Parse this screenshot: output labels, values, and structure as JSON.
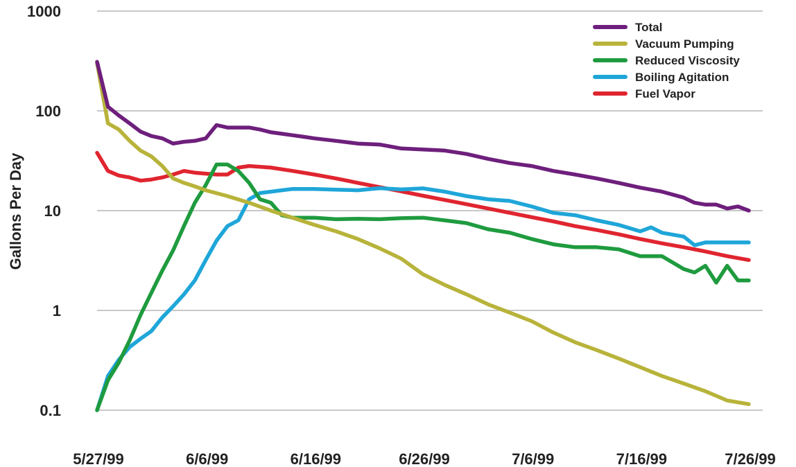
{
  "chart_data": {
    "type": "line",
    "title": "",
    "xlabel": "",
    "ylabel": "Gallons Per Day",
    "y_scale": "log",
    "ylim": [
      0.1,
      1000
    ],
    "y_ticks": [
      {
        "value": 0.1,
        "label": "0.1"
      },
      {
        "value": 1,
        "label": "1"
      },
      {
        "value": 10,
        "label": "10"
      },
      {
        "value": 100,
        "label": "100"
      },
      {
        "value": 1000,
        "label": "1000"
      }
    ],
    "xlim": [
      "1999-05-27",
      "1999-07-26"
    ],
    "x_ticks": [
      {
        "value": "1999-05-27",
        "label": "5/27/99"
      },
      {
        "value": "1999-06-06",
        "label": "6/6/99"
      },
      {
        "value": "1999-06-16",
        "label": "6/16/99"
      },
      {
        "value": "1999-06-26",
        "label": "6/26/99"
      },
      {
        "value": "1999-07-06",
        "label": "7/6/99"
      },
      {
        "value": "1999-07-16",
        "label": "7/16/99"
      },
      {
        "value": "1999-07-26",
        "label": "7/26/99"
      }
    ],
    "grid": true,
    "legend_position": "top-right",
    "series": [
      {
        "name": "Total",
        "color": "#6e1f7c",
        "points": [
          [
            "1999-05-27",
            310
          ],
          [
            "1999-05-28",
            110
          ],
          [
            "1999-05-29",
            90
          ],
          [
            "1999-05-30",
            75
          ],
          [
            "1999-05-31",
            62
          ],
          [
            "1999-06-01",
            56
          ],
          [
            "1999-06-02",
            53
          ],
          [
            "1999-06-03",
            47
          ],
          [
            "1999-06-04",
            49
          ],
          [
            "1999-06-05",
            50
          ],
          [
            "1999-06-06",
            53
          ],
          [
            "1999-06-07",
            72
          ],
          [
            "1999-06-08",
            68
          ],
          [
            "1999-06-09",
            68
          ],
          [
            "1999-06-10",
            68
          ],
          [
            "1999-06-11",
            65
          ],
          [
            "1999-06-12",
            61
          ],
          [
            "1999-06-13",
            59
          ],
          [
            "1999-06-14",
            57
          ],
          [
            "1999-06-15",
            55
          ],
          [
            "1999-06-16",
            53
          ],
          [
            "1999-06-18",
            50
          ],
          [
            "1999-06-20",
            47
          ],
          [
            "1999-06-22",
            46
          ],
          [
            "1999-06-24",
            42
          ],
          [
            "1999-06-26",
            41
          ],
          [
            "1999-06-28",
            40
          ],
          [
            "1999-06-30",
            37
          ],
          [
            "1999-07-02",
            33
          ],
          [
            "1999-07-04",
            30
          ],
          [
            "1999-07-06",
            28
          ],
          [
            "1999-07-08",
            25
          ],
          [
            "1999-07-10",
            23
          ],
          [
            "1999-07-12",
            21
          ],
          [
            "1999-07-14",
            19
          ],
          [
            "1999-07-16",
            17
          ],
          [
            "1999-07-18",
            15.5
          ],
          [
            "1999-07-20",
            13.5
          ],
          [
            "1999-07-21",
            12
          ],
          [
            "1999-07-22",
            11.5
          ],
          [
            "1999-07-23",
            11.5
          ],
          [
            "1999-07-24",
            10.5
          ],
          [
            "1999-07-25",
            11
          ],
          [
            "1999-07-26",
            10
          ]
        ]
      },
      {
        "name": "Vacuum Pumping",
        "color": "#b8b33a",
        "points": [
          [
            "1999-05-27",
            300
          ],
          [
            "1999-05-28",
            75
          ],
          [
            "1999-05-29",
            65
          ],
          [
            "1999-05-30",
            50
          ],
          [
            "1999-05-31",
            40
          ],
          [
            "1999-06-01",
            35
          ],
          [
            "1999-06-02",
            28
          ],
          [
            "1999-06-03",
            21
          ],
          [
            "1999-06-04",
            19
          ],
          [
            "1999-06-05",
            17.5
          ],
          [
            "1999-06-06",
            16
          ],
          [
            "1999-06-08",
            14
          ],
          [
            "1999-06-10",
            12
          ],
          [
            "1999-06-12",
            10
          ],
          [
            "1999-06-14",
            8.5
          ],
          [
            "1999-06-16",
            7.2
          ],
          [
            "1999-06-18",
            6.2
          ],
          [
            "1999-06-20",
            5.2
          ],
          [
            "1999-06-22",
            4.2
          ],
          [
            "1999-06-24",
            3.3
          ],
          [
            "1999-06-26",
            2.3
          ],
          [
            "1999-06-28",
            1.8
          ],
          [
            "1999-06-30",
            1.45
          ],
          [
            "1999-07-02",
            1.15
          ],
          [
            "1999-07-04",
            0.95
          ],
          [
            "1999-07-06",
            0.78
          ],
          [
            "1999-07-08",
            0.6
          ],
          [
            "1999-07-10",
            0.48
          ],
          [
            "1999-07-12",
            0.4
          ],
          [
            "1999-07-14",
            0.33
          ],
          [
            "1999-07-16",
            0.27
          ],
          [
            "1999-07-18",
            0.22
          ],
          [
            "1999-07-20",
            0.185
          ],
          [
            "1999-07-22",
            0.155
          ],
          [
            "1999-07-24",
            0.125
          ],
          [
            "1999-07-26",
            0.115
          ]
        ]
      },
      {
        "name": "Reduced Viscosity",
        "color": "#1f9b3f",
        "points": [
          [
            "1999-05-27",
            0.1
          ],
          [
            "1999-05-28",
            0.2
          ],
          [
            "1999-05-29",
            0.3
          ],
          [
            "1999-05-30",
            0.5
          ],
          [
            "1999-05-31",
            0.9
          ],
          [
            "1999-06-01",
            1.5
          ],
          [
            "1999-06-02",
            2.5
          ],
          [
            "1999-06-03",
            4
          ],
          [
            "1999-06-04",
            7
          ],
          [
            "1999-06-05",
            12
          ],
          [
            "1999-06-06",
            18
          ],
          [
            "1999-06-07",
            29
          ],
          [
            "1999-06-08",
            29
          ],
          [
            "1999-06-09",
            25
          ],
          [
            "1999-06-10",
            19
          ],
          [
            "1999-06-11",
            13
          ],
          [
            "1999-06-12",
            12
          ],
          [
            "1999-06-13",
            9
          ],
          [
            "1999-06-14",
            8.5
          ],
          [
            "1999-06-15",
            8.5
          ],
          [
            "1999-06-16",
            8.5
          ],
          [
            "1999-06-18",
            8.2
          ],
          [
            "1999-06-20",
            8.3
          ],
          [
            "1999-06-22",
            8.2
          ],
          [
            "1999-06-24",
            8.4
          ],
          [
            "1999-06-26",
            8.5
          ],
          [
            "1999-06-28",
            8.0
          ],
          [
            "1999-06-30",
            7.5
          ],
          [
            "1999-07-02",
            6.5
          ],
          [
            "1999-07-04",
            6.0
          ],
          [
            "1999-07-06",
            5.2
          ],
          [
            "1999-07-08",
            4.6
          ],
          [
            "1999-07-10",
            4.3
          ],
          [
            "1999-07-12",
            4.3
          ],
          [
            "1999-07-14",
            4.1
          ],
          [
            "1999-07-16",
            3.5
          ],
          [
            "1999-07-18",
            3.5
          ],
          [
            "1999-07-20",
            2.6
          ],
          [
            "1999-07-21",
            2.4
          ],
          [
            "1999-07-22",
            2.8
          ],
          [
            "1999-07-23",
            1.9
          ],
          [
            "1999-07-24",
            2.8
          ],
          [
            "1999-07-25",
            2.0
          ],
          [
            "1999-07-26",
            2.0
          ]
        ]
      },
      {
        "name": "Boiling Agitation",
        "color": "#1fa6d9",
        "points": [
          [
            "1999-05-27",
            0.1
          ],
          [
            "1999-05-28",
            0.22
          ],
          [
            "1999-05-29",
            0.32
          ],
          [
            "1999-05-30",
            0.43
          ],
          [
            "1999-05-31",
            0.52
          ],
          [
            "1999-06-01",
            0.62
          ],
          [
            "1999-06-02",
            0.85
          ],
          [
            "1999-06-03",
            1.1
          ],
          [
            "1999-06-04",
            1.45
          ],
          [
            "1999-06-05",
            2
          ],
          [
            "1999-06-06",
            3.2
          ],
          [
            "1999-06-07",
            5
          ],
          [
            "1999-06-08",
            7
          ],
          [
            "1999-06-09",
            8
          ],
          [
            "1999-06-10",
            13
          ],
          [
            "1999-06-11",
            15
          ],
          [
            "1999-06-12",
            15.5
          ],
          [
            "1999-06-13",
            16
          ],
          [
            "1999-06-14",
            16.5
          ],
          [
            "1999-06-15",
            16.5
          ],
          [
            "1999-06-16",
            16.5
          ],
          [
            "1999-06-18",
            16.2
          ],
          [
            "1999-06-20",
            16
          ],
          [
            "1999-06-22",
            16.8
          ],
          [
            "1999-06-24",
            16.3
          ],
          [
            "1999-06-26",
            16.7
          ],
          [
            "1999-06-28",
            15.5
          ],
          [
            "1999-06-30",
            14
          ],
          [
            "1999-07-02",
            13
          ],
          [
            "1999-07-04",
            12.5
          ],
          [
            "1999-07-06",
            11
          ],
          [
            "1999-07-08",
            9.5
          ],
          [
            "1999-07-10",
            9
          ],
          [
            "1999-07-12",
            8
          ],
          [
            "1999-07-14",
            7.2
          ],
          [
            "1999-07-16",
            6.2
          ],
          [
            "1999-07-17",
            6.8
          ],
          [
            "1999-07-18",
            6.0
          ],
          [
            "1999-07-20",
            5.5
          ],
          [
            "1999-07-21",
            4.5
          ],
          [
            "1999-07-22",
            4.8
          ],
          [
            "1999-07-24",
            4.8
          ],
          [
            "1999-07-26",
            4.8
          ]
        ]
      },
      {
        "name": "Fuel Vapor",
        "color": "#e02530",
        "points": [
          [
            "1999-05-27",
            38
          ],
          [
            "1999-05-28",
            25
          ],
          [
            "1999-05-29",
            22.5
          ],
          [
            "1999-05-30",
            21.5
          ],
          [
            "1999-05-31",
            20
          ],
          [
            "1999-06-01",
            20.5
          ],
          [
            "1999-06-02",
            21.5
          ],
          [
            "1999-06-03",
            23
          ],
          [
            "1999-06-04",
            25
          ],
          [
            "1999-06-05",
            24
          ],
          [
            "1999-06-06",
            23.5
          ],
          [
            "1999-06-07",
            23
          ],
          [
            "1999-06-08",
            23
          ],
          [
            "1999-06-09",
            27
          ],
          [
            "1999-06-10",
            28
          ],
          [
            "1999-06-12",
            27
          ],
          [
            "1999-06-14",
            25
          ],
          [
            "1999-06-16",
            23
          ],
          [
            "1999-06-18",
            21
          ],
          [
            "1999-06-20",
            19
          ],
          [
            "1999-06-22",
            17.2
          ],
          [
            "1999-06-24",
            15.6
          ],
          [
            "1999-06-26",
            14.1
          ],
          [
            "1999-06-28",
            12.8
          ],
          [
            "1999-06-30",
            11.6
          ],
          [
            "1999-07-02",
            10.5
          ],
          [
            "1999-07-04",
            9.5
          ],
          [
            "1999-07-06",
            8.6
          ],
          [
            "1999-07-08",
            7.8
          ],
          [
            "1999-07-10",
            7.0
          ],
          [
            "1999-07-12",
            6.4
          ],
          [
            "1999-07-14",
            5.8
          ],
          [
            "1999-07-16",
            5.2
          ],
          [
            "1999-07-18",
            4.7
          ],
          [
            "1999-07-20",
            4.3
          ],
          [
            "1999-07-22",
            3.9
          ],
          [
            "1999-07-24",
            3.5
          ],
          [
            "1999-07-26",
            3.2
          ]
        ]
      }
    ]
  }
}
